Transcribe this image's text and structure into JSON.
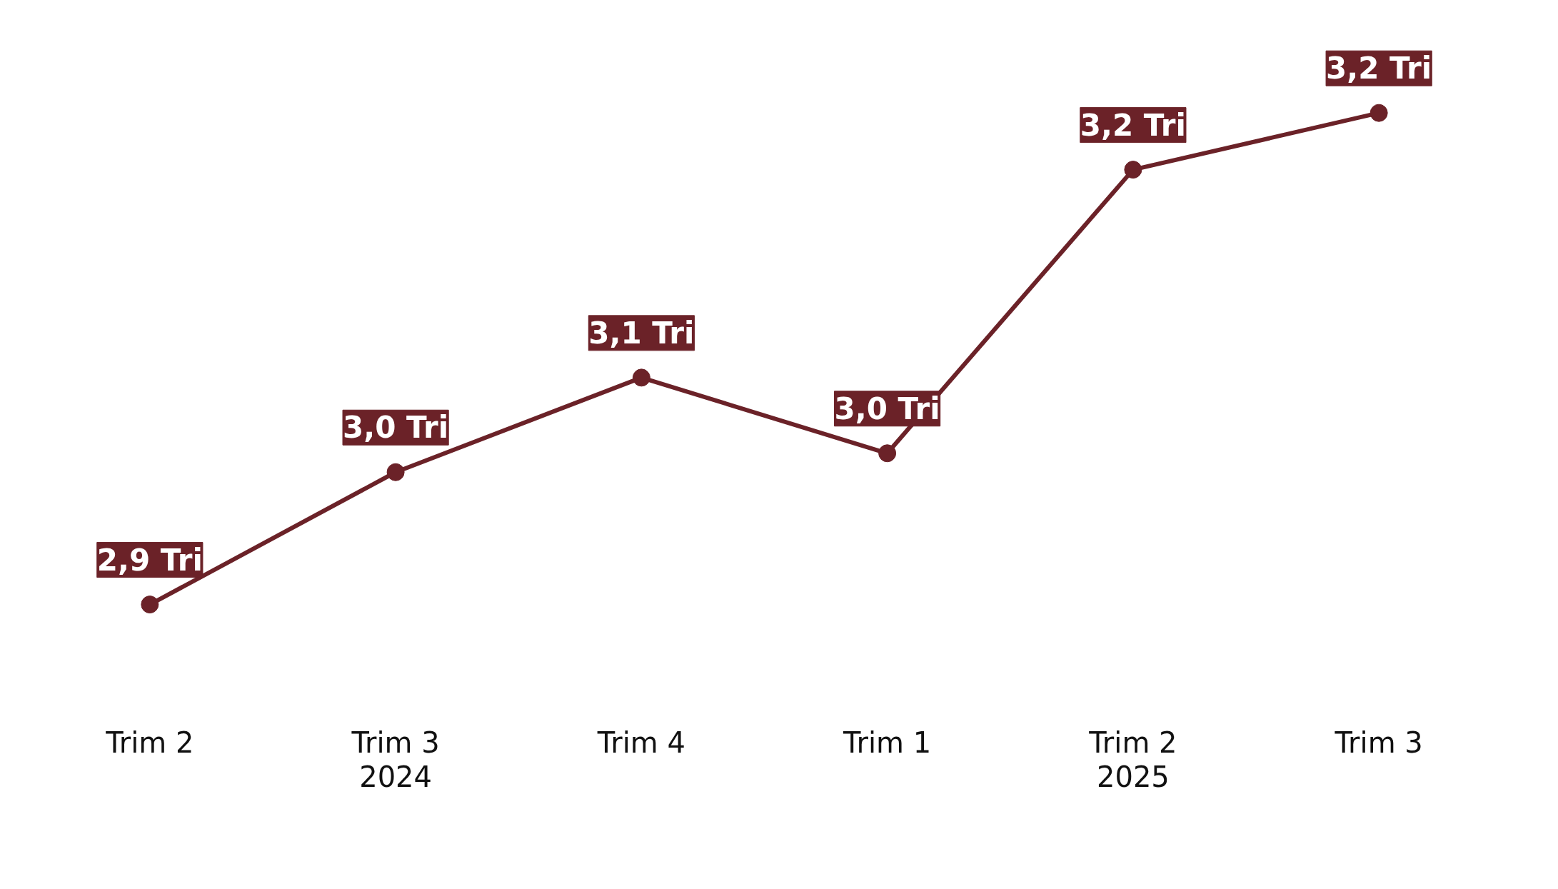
{
  "chart_data": {
    "type": "line",
    "categories": [
      "Trim 2",
      "Trim 3",
      "Trim 4",
      "Trim 1",
      "Trim 2",
      "Trim 3"
    ],
    "series": [
      {
        "color": "#6b2228",
        "values": [
          2.94,
          3.01,
          3.06,
          3.02,
          3.17,
          3.2
        ],
        "value_labels": [
          "2,9 Tri",
          "3,0 Tri",
          "3,1 Tri",
          "3,0 Tri",
          "3,2 Tri",
          "3,2 Tri"
        ]
      }
    ],
    "annotations": [
      "2024",
      "2025"
    ],
    "marker": "circle",
    "line_style": "solid",
    "grid": false,
    "tick_labels": "x"
  }
}
